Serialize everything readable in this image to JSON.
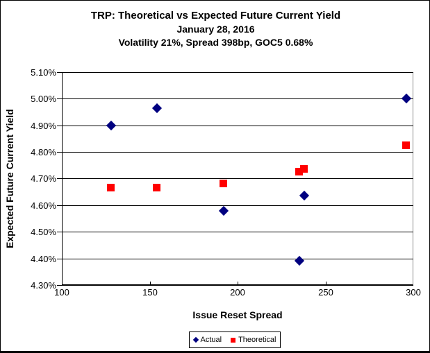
{
  "chart_data": {
    "type": "scatter",
    "title_lines": [
      "TRP: Theoretical vs Expected Future Current Yield",
      "January 28, 2016",
      "Volatility 21%, Spread 398bp, GOC5 0.68%"
    ],
    "xlabel": "Issue Reset Spread",
    "ylabel": "Expected Future Current Yield",
    "xlim": [
      100,
      300
    ],
    "ylim": [
      4.3,
      5.1
    ],
    "x_ticks": [
      100,
      150,
      200,
      250,
      300
    ],
    "x_tick_labels": [
      "100",
      "150",
      "200",
      "250",
      "300"
    ],
    "y_ticks": [
      5.1,
      5.0,
      4.9,
      4.8,
      4.7,
      4.6,
      4.5,
      4.4,
      4.3
    ],
    "y_tick_labels": [
      "5.10%",
      "5.00%",
      "4.90%",
      "4.80%",
      "4.70%",
      "4.60%",
      "4.50%",
      "4.40%",
      "4.30%"
    ],
    "grid": "horizontal",
    "legend_position": "bottom-center",
    "background_color": "#FFFFFF",
    "gridline_color": "#000000",
    "series": [
      {
        "name": "Actual",
        "marker": "diamond",
        "color": "#000080",
        "points": [
          [
            128,
            4.9
          ],
          [
            154,
            4.965
          ],
          [
            192,
            4.58
          ],
          [
            235,
            4.39
          ],
          [
            238,
            4.635
          ],
          [
            296,
            5.0
          ]
        ]
      },
      {
        "name": "Theoretical",
        "marker": "square",
        "color": "#FF0000",
        "points": [
          [
            128,
            4.665
          ],
          [
            154,
            4.665
          ],
          [
            192,
            4.68
          ],
          [
            235,
            4.725
          ],
          [
            238,
            4.735
          ],
          [
            296,
            4.825
          ]
        ]
      }
    ]
  }
}
